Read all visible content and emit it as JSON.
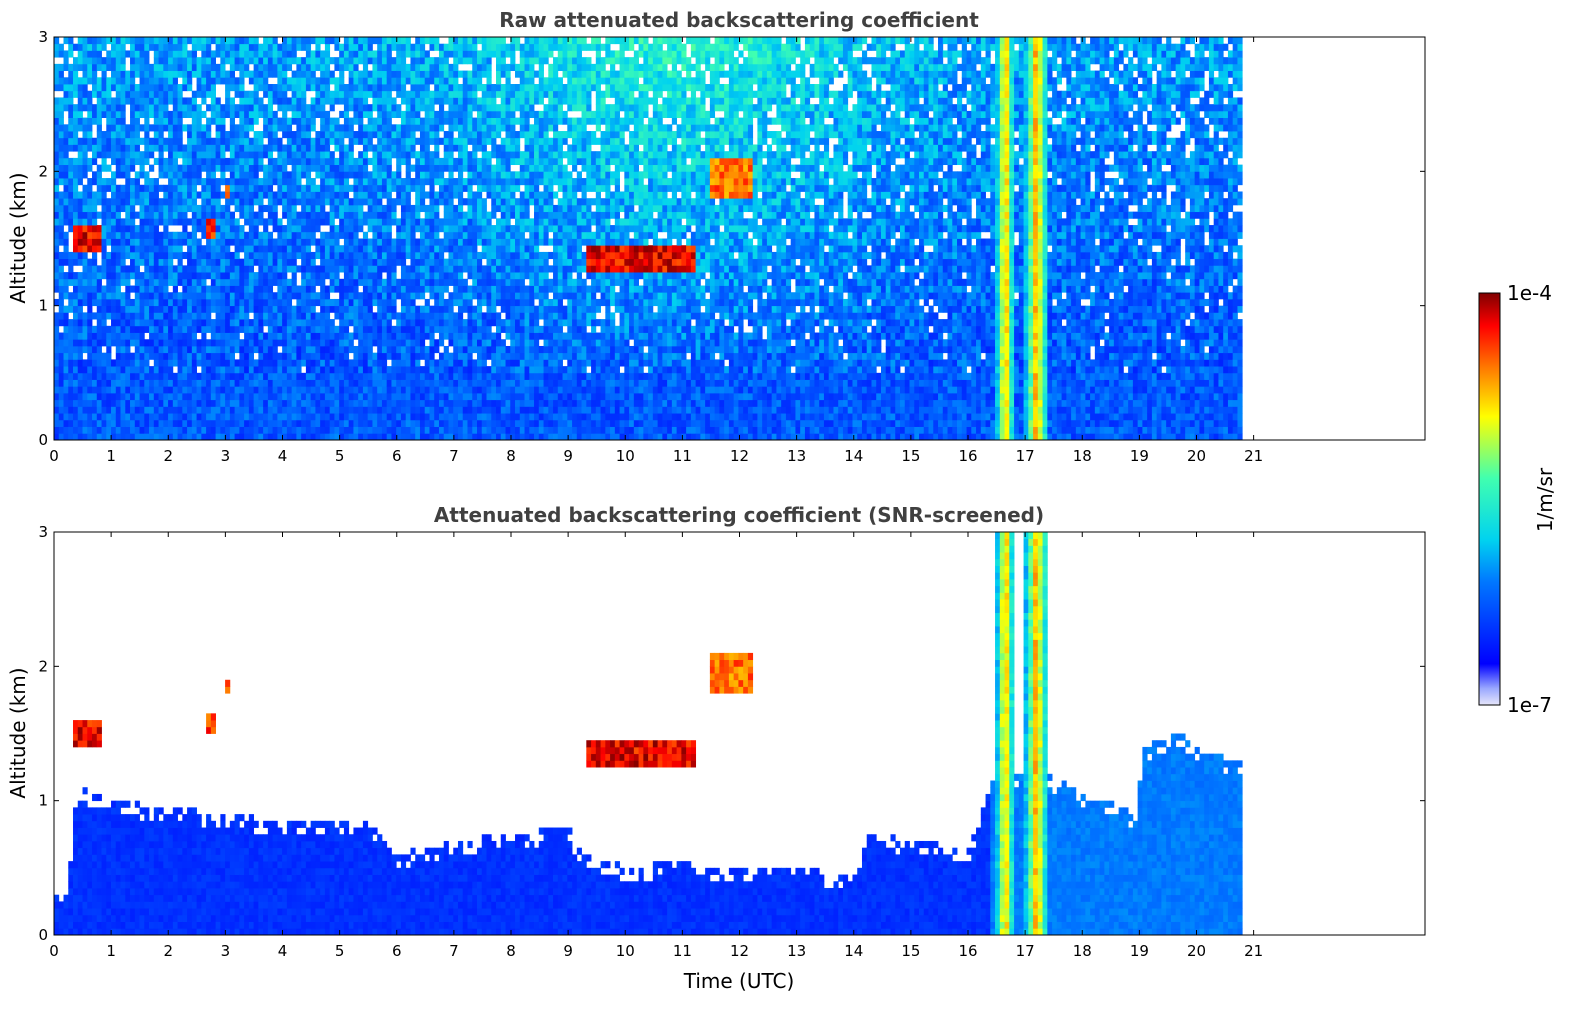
{
  "chart_data": [
    {
      "type": "heatmap",
      "title": "Raw attenuated backscattering coefficient",
      "xlabel": "",
      "ylabel": "Altitude (km)",
      "xlim": [
        0,
        24
      ],
      "ylim": [
        0,
        3
      ],
      "xticks": [
        "0",
        "1",
        "2",
        "3",
        "4",
        "5",
        "6",
        "7",
        "8",
        "9",
        "10",
        "11",
        "12",
        "13",
        "14",
        "15",
        "16",
        "17",
        "18",
        "19",
        "20",
        "21"
      ],
      "yticks": [
        "0",
        "1",
        "2",
        "3"
      ],
      "data_end_time": 20.8,
      "noise_level": 0.35,
      "features": [
        {
          "name": "boundary layer",
          "t0": 0,
          "t1": 20.8,
          "z0": 0,
          "z1": 0.5,
          "level": 0.32
        },
        {
          "name": "cloud",
          "t0": 0.3,
          "t1": 0.8,
          "z0": 1.4,
          "z1": 1.6,
          "level": 1.0
        },
        {
          "name": "cloud",
          "t0": 2.65,
          "t1": 2.85,
          "z0": 1.5,
          "z1": 1.65,
          "level": 0.95
        },
        {
          "name": "cloud",
          "t0": 3.0,
          "t1": 3.1,
          "z0": 1.8,
          "z1": 1.9,
          "level": 0.9
        },
        {
          "name": "cloud",
          "t0": 9.3,
          "t1": 11.2,
          "z0": 1.25,
          "z1": 1.45,
          "level": 1.0
        },
        {
          "name": "cloud",
          "t0": 11.5,
          "t1": 12.2,
          "z0": 1.8,
          "z1": 2.1,
          "level": 0.9
        },
        {
          "name": "precipitation",
          "t0": 16.5,
          "t1": 16.8,
          "z0": 0,
          "z1": 3,
          "level": 0.8
        },
        {
          "name": "precipitation",
          "t0": 17.0,
          "t1": 17.4,
          "z0": 0,
          "z1": 3,
          "level": 0.8
        }
      ]
    },
    {
      "type": "heatmap",
      "title": "Attenuated backscattering coefficient (SNR-screened)",
      "xlabel": "Time (UTC)",
      "ylabel": "Altitude (km)",
      "xlim": [
        0,
        24
      ],
      "ylim": [
        0,
        3
      ],
      "xticks": [
        "0",
        "1",
        "2",
        "3",
        "4",
        "5",
        "6",
        "7",
        "8",
        "9",
        "10",
        "11",
        "12",
        "13",
        "14",
        "15",
        "16",
        "17",
        "18",
        "19",
        "20",
        "21"
      ],
      "yticks": [
        "0",
        "1",
        "2",
        "3"
      ],
      "data_end_time": 20.8,
      "layer_top": [
        [
          0,
          0.3
        ],
        [
          0.25,
          0.45
        ],
        [
          0.4,
          1.1
        ],
        [
          1,
          1.0
        ],
        [
          2,
          0.95
        ],
        [
          3,
          0.9
        ],
        [
          4,
          0.85
        ],
        [
          5,
          0.85
        ],
        [
          5.5,
          0.85
        ],
        [
          6,
          0.6
        ],
        [
          7,
          0.7
        ],
        [
          8,
          0.75
        ],
        [
          9,
          0.8
        ],
        [
          9.2,
          0.65
        ],
        [
          10,
          0.5
        ],
        [
          11,
          0.55
        ],
        [
          12,
          0.5
        ],
        [
          13,
          0.5
        ],
        [
          14,
          0.45
        ],
        [
          14.3,
          0.8
        ],
        [
          14.5,
          0.75
        ],
        [
          15,
          0.7
        ],
        [
          16,
          0.65
        ],
        [
          16.5,
          1.2
        ],
        [
          17.4,
          1.2
        ],
        [
          18,
          1.05
        ],
        [
          18.6,
          1.0
        ],
        [
          18.9,
          0.9
        ],
        [
          19.1,
          1.4
        ],
        [
          19.7,
          1.5
        ],
        [
          20.2,
          1.35
        ],
        [
          20.8,
          1.3
        ]
      ],
      "features": [
        {
          "name": "cloud",
          "t0": 0.3,
          "t1": 0.8,
          "z0": 1.4,
          "z1": 1.6,
          "level": 1.0
        },
        {
          "name": "cloud",
          "t0": 2.65,
          "t1": 2.85,
          "z0": 1.5,
          "z1": 1.65,
          "level": 0.95
        },
        {
          "name": "cloud",
          "t0": 3.0,
          "t1": 3.1,
          "z0": 1.8,
          "z1": 1.9,
          "level": 0.9
        },
        {
          "name": "cloud",
          "t0": 9.3,
          "t1": 11.2,
          "z0": 1.25,
          "z1": 1.45,
          "level": 1.0
        },
        {
          "name": "cloud",
          "t0": 11.5,
          "t1": 12.2,
          "z0": 1.8,
          "z1": 2.1,
          "level": 0.9
        },
        {
          "name": "precipitation",
          "t0": 16.5,
          "t1": 16.8,
          "z0": 0,
          "z1": 3,
          "level": 0.8
        },
        {
          "name": "precipitation",
          "t0": 17.0,
          "t1": 17.4,
          "z0": 0,
          "z1": 3,
          "level": 0.8
        }
      ]
    }
  ],
  "colorbar": {
    "label": "1/m/sr",
    "max_label": "1e-4",
    "min_label": "1e-7",
    "colormap": "jet"
  }
}
